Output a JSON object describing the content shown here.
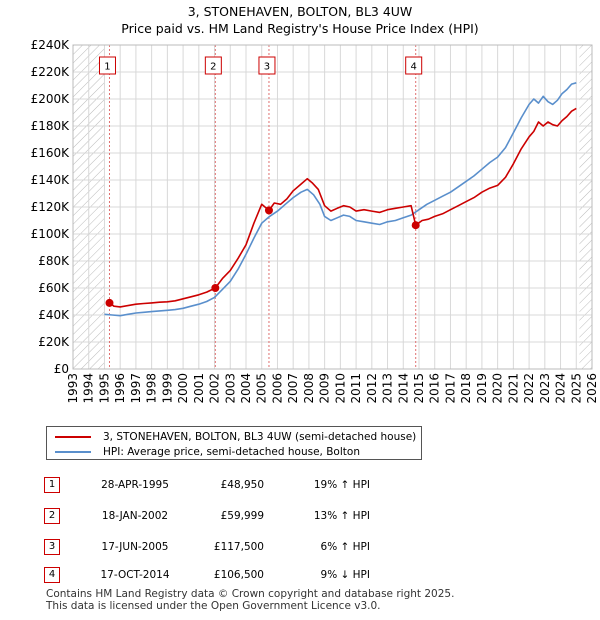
{
  "chart_data": {
    "type": "line",
    "title": "3, STONEHAVEN, BOLTON, BL3 4UW",
    "subtitle": "Price paid vs. HM Land Registry's House Price Index (HPI)",
    "xlabel": "",
    "ylabel": "",
    "xlim": [
      1993,
      2026
    ],
    "ylim": [
      0,
      240000
    ],
    "y_ticks": [
      0,
      20000,
      40000,
      60000,
      80000,
      100000,
      120000,
      140000,
      160000,
      180000,
      200000,
      220000,
      240000
    ],
    "y_tick_labels": [
      "£0",
      "£20K",
      "£40K",
      "£60K",
      "£80K",
      "£100K",
      "£120K",
      "£140K",
      "£160K",
      "£180K",
      "£200K",
      "£220K",
      "£240K"
    ],
    "x_ticks": [
      1993,
      1994,
      1995,
      1996,
      1997,
      1998,
      1999,
      2000,
      2001,
      2002,
      2003,
      2004,
      2005,
      2006,
      2007,
      2008,
      2009,
      2010,
      2011,
      2012,
      2013,
      2014,
      2015,
      2016,
      2017,
      2018,
      2019,
      2020,
      2021,
      2022,
      2023,
      2024,
      2025,
      2026
    ],
    "x_tick_labels": [
      "1993",
      "1994",
      "1995",
      "1996",
      "1997",
      "1998",
      "1999",
      "2000",
      "2001",
      "2002",
      "2003",
      "2004",
      "2005",
      "2006",
      "2007",
      "2008",
      "2009",
      "2010",
      "2011",
      "2012",
      "2013",
      "2014",
      "2015",
      "2016",
      "2017",
      "2018",
      "2019",
      "2020",
      "2021",
      "2022",
      "2023",
      "2024",
      "2025",
      "2026"
    ],
    "grid": true,
    "hatched_ranges": [
      [
        1993,
        1995.0
      ],
      [
        2025.2,
        2026
      ]
    ],
    "series": [
      {
        "name": "3, STONEHAVEN, BOLTON, BL3 4UW (semi-detached house)",
        "color": "#cc0000",
        "x": [
          1995.32,
          1995.6,
          1996.0,
          1996.5,
          1997.0,
          1997.5,
          1998.0,
          1998.5,
          1999.0,
          1999.5,
          2000.0,
          2000.5,
          2001.0,
          2001.5,
          2002.05,
          2002.5,
          2003.0,
          2003.5,
          2004.0,
          2004.5,
          2005.0,
          2005.46,
          2005.8,
          2006.2,
          2006.6,
          2007.0,
          2007.5,
          2007.9,
          2008.2,
          2008.6,
          2009.0,
          2009.4,
          2009.8,
          2010.2,
          2010.6,
          2011.0,
          2011.5,
          2012.0,
          2012.5,
          2013.0,
          2013.5,
          2014.0,
          2014.5,
          2014.79,
          2015.2,
          2015.6,
          2016.0,
          2016.5,
          2017.0,
          2017.5,
          2018.0,
          2018.5,
          2019.0,
          2019.5,
          2020.0,
          2020.5,
          2021.0,
          2021.5,
          2022.0,
          2022.3,
          2022.6,
          2022.9,
          2023.2,
          2023.5,
          2023.8,
          2024.1,
          2024.4,
          2024.7,
          2025.0
        ],
        "y": [
          48950,
          46500,
          46000,
          47000,
          48000,
          48500,
          49000,
          49500,
          49800,
          50500,
          52000,
          53500,
          55000,
          57000,
          59999,
          67000,
          73000,
          82000,
          92000,
          108000,
          122000,
          117500,
          123000,
          122000,
          126000,
          132000,
          137000,
          141000,
          138000,
          133000,
          121000,
          117000,
          119000,
          121000,
          120000,
          117000,
          118000,
          117000,
          116000,
          118000,
          119000,
          120000,
          121000,
          106500,
          110000,
          111000,
          113000,
          115000,
          118000,
          121000,
          124000,
          127000,
          131000,
          134000,
          136000,
          142000,
          152000,
          163000,
          172000,
          176000,
          183000,
          180000,
          183000,
          181000,
          180000,
          184000,
          187000,
          191000,
          193000
        ]
      },
      {
        "name": "HPI: Average price, semi-detached house, Bolton",
        "color": "#5a8fcc",
        "x": [
          1995.0,
          1995.5,
          1996.0,
          1996.5,
          1997.0,
          1997.5,
          1998.0,
          1998.5,
          1999.0,
          1999.5,
          2000.0,
          2000.5,
          2001.0,
          2001.5,
          2002.0,
          2002.5,
          2003.0,
          2003.5,
          2004.0,
          2004.5,
          2005.0,
          2005.5,
          2006.0,
          2006.5,
          2007.0,
          2007.5,
          2007.9,
          2008.3,
          2008.7,
          2009.0,
          2009.4,
          2009.8,
          2010.2,
          2010.6,
          2011.0,
          2011.5,
          2012.0,
          2012.5,
          2013.0,
          2013.5,
          2014.0,
          2014.5,
          2015.0,
          2015.5,
          2016.0,
          2016.5,
          2017.0,
          2017.5,
          2018.0,
          2018.5,
          2019.0,
          2019.5,
          2020.0,
          2020.5,
          2021.0,
          2021.5,
          2022.0,
          2022.3,
          2022.6,
          2022.9,
          2023.2,
          2023.5,
          2023.8,
          2024.1,
          2024.4,
          2024.7,
          2025.0
        ],
        "y": [
          40500,
          40000,
          39500,
          40500,
          41500,
          42000,
          42500,
          43000,
          43500,
          44000,
          45000,
          46500,
          48000,
          50000,
          53000,
          59000,
          65000,
          74000,
          85000,
          97000,
          108000,
          113000,
          117000,
          122000,
          127000,
          131000,
          133000,
          129000,
          122000,
          113000,
          110000,
          112000,
          114000,
          113000,
          110000,
          109000,
          108000,
          107000,
          109000,
          110000,
          112000,
          114000,
          118000,
          122000,
          125000,
          128000,
          131000,
          135000,
          139000,
          143000,
          148000,
          153000,
          157000,
          164000,
          175000,
          186000,
          196000,
          200000,
          197000,
          202000,
          198000,
          196000,
          199000,
          204000,
          207000,
          211000,
          212000
        ]
      }
    ],
    "sale_markers": [
      {
        "label": "1",
        "x": 1995.32,
        "y": 48950
      },
      {
        "label": "2",
        "x": 2002.05,
        "y": 59999
      },
      {
        "label": "3",
        "x": 2005.46,
        "y": 117500
      },
      {
        "label": "4",
        "x": 2014.79,
        "y": 106500
      }
    ]
  },
  "legend": {
    "items": [
      {
        "label": "3, STONEHAVEN, BOLTON, BL3 4UW (semi-detached house)",
        "color": "#cc0000"
      },
      {
        "label": "HPI: Average price, semi-detached house, Bolton",
        "color": "#5a8fcc"
      }
    ]
  },
  "sales": [
    {
      "num": "1",
      "date": "28-APR-1995",
      "price": "£48,950",
      "hpi": "19% ↑ HPI"
    },
    {
      "num": "2",
      "date": "18-JAN-2002",
      "price": "£59,999",
      "hpi": "13% ↑ HPI"
    },
    {
      "num": "3",
      "date": "17-JUN-2005",
      "price": "£117,500",
      "hpi": "6% ↑ HPI"
    },
    {
      "num": "4",
      "date": "17-OCT-2014",
      "price": "£106,500",
      "hpi": "9% ↓ HPI"
    }
  ],
  "footer": {
    "line1": "Contains HM Land Registry data © Crown copyright and database right 2025.",
    "line2": "This data is licensed under the Open Government Licence v3.0."
  },
  "colors": {
    "sale_marker": "#cc0000",
    "vline": "#e07070",
    "grid": "#d8d8d8"
  }
}
